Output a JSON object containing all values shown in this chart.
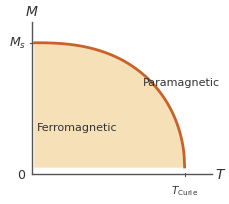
{
  "xlabel": "T",
  "ylabel": "M",
  "Ms_label": "$M_s$",
  "origin_label": "0",
  "TCurie_label": "$T_{\\mathrm{Curie}}$",
  "ferromagnetic_label": "Ferromagnetic",
  "paramagnetic_label": "Paramagnetic",
  "curve_color": "#c8622a",
  "fill_color": "#f5e0b8",
  "background_color": "#ffffff",
  "axis_color": "#555555",
  "text_color": "#333333",
  "curve_linewidth": 2.0,
  "figsize": [
    2.29,
    2.05
  ],
  "dpi": 100
}
